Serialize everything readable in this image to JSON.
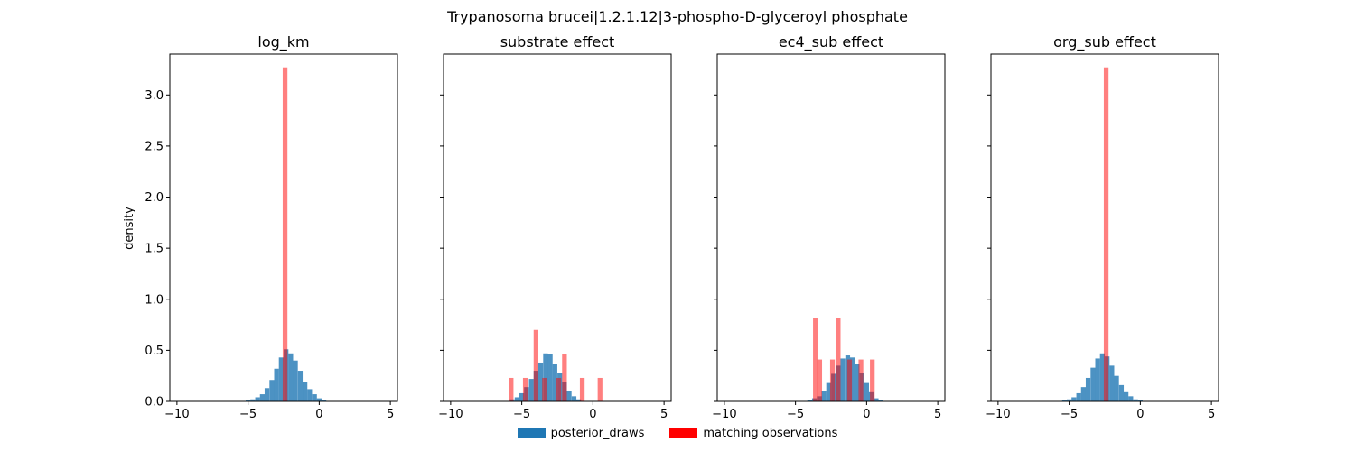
{
  "figure": {
    "suptitle": "Trypanosoma brucei|1.2.1.12|3-phospho-D-glyceroyl phosphate",
    "ylabel": "density"
  },
  "legend": {
    "items": [
      {
        "label": "posterior_draws",
        "color": "#1f77b4"
      },
      {
        "label": "matching observations",
        "color": "#ff0000"
      }
    ]
  },
  "colors": {
    "posterior": "#1f77b4",
    "observations": "#ff0000"
  },
  "chart_data": [
    {
      "type": "bar",
      "title": "log_km",
      "xlim": [
        -10.5,
        5.5
      ],
      "ylim": [
        0,
        3.4
      ],
      "xticks": [
        -10,
        -5,
        0,
        5
      ],
      "yticks": [
        0.0,
        0.5,
        1.0,
        1.5,
        2.0,
        2.5,
        3.0
      ],
      "ytick_labels": [
        "0.0",
        "0.5",
        "1.0",
        "1.5",
        "2.0",
        "2.5",
        "3.0"
      ],
      "series": [
        {
          "name": "posterior_draws",
          "bin_width": 0.333,
          "bins": [
            [
              -5.0,
              0.01
            ],
            [
              -4.67,
              0.02
            ],
            [
              -4.33,
              0.04
            ],
            [
              -4.0,
              0.07
            ],
            [
              -3.67,
              0.13
            ],
            [
              -3.33,
              0.21
            ],
            [
              -3.0,
              0.32
            ],
            [
              -2.67,
              0.43
            ],
            [
              -2.33,
              0.51
            ],
            [
              -2.0,
              0.47
            ],
            [
              -1.67,
              0.4
            ],
            [
              -1.33,
              0.3
            ],
            [
              -1.0,
              0.19
            ],
            [
              -0.67,
              0.12
            ],
            [
              -0.33,
              0.07
            ],
            [
              0.0,
              0.03
            ],
            [
              0.33,
              0.01
            ]
          ]
        },
        {
          "name": "matching observations",
          "bin_width": 0.333,
          "bins": [
            [
              -2.4,
              3.27
            ]
          ]
        }
      ]
    },
    {
      "type": "bar",
      "title": "substrate effect",
      "xlim": [
        -10.5,
        5.5
      ],
      "ylim": [
        0,
        3.4
      ],
      "xticks": [
        -10,
        -5,
        0,
        5
      ],
      "yticks": [
        0.0,
        0.5,
        1.0,
        1.5,
        2.0,
        2.5,
        3.0
      ],
      "series": [
        {
          "name": "posterior_draws",
          "bin_width": 0.333,
          "bins": [
            [
              -5.67,
              0.02
            ],
            [
              -5.33,
              0.04
            ],
            [
              -5.0,
              0.08
            ],
            [
              -4.67,
              0.14
            ],
            [
              -4.33,
              0.22
            ],
            [
              -4.0,
              0.3
            ],
            [
              -3.67,
              0.38
            ],
            [
              -3.33,
              0.47
            ],
            [
              -3.0,
              0.46
            ],
            [
              -2.67,
              0.37
            ],
            [
              -2.33,
              0.28
            ],
            [
              -2.0,
              0.19
            ],
            [
              -1.67,
              0.1
            ],
            [
              -1.33,
              0.05
            ],
            [
              -1.0,
              0.02
            ]
          ]
        },
        {
          "name": "matching observations",
          "bin_width": 0.333,
          "bins": [
            [
              -5.75,
              0.23
            ],
            [
              -4.75,
              0.23
            ],
            [
              -4.0,
              0.7
            ],
            [
              -3.4,
              0.23
            ],
            [
              -2.4,
              0.23
            ],
            [
              -2.0,
              0.46
            ],
            [
              -0.75,
              0.23
            ],
            [
              0.5,
              0.23
            ]
          ]
        }
      ]
    },
    {
      "type": "bar",
      "title": "ec4_sub effect",
      "xlim": [
        -10.5,
        5.5
      ],
      "ylim": [
        0,
        3.4
      ],
      "xticks": [
        -10,
        -5,
        0,
        5
      ],
      "yticks": [
        0.0,
        0.5,
        1.0,
        1.5,
        2.0,
        2.5,
        3.0
      ],
      "series": [
        {
          "name": "posterior_draws",
          "bin_width": 0.333,
          "bins": [
            [
              -4.0,
              0.01
            ],
            [
              -3.67,
              0.03
            ],
            [
              -3.33,
              0.05
            ],
            [
              -3.0,
              0.1
            ],
            [
              -2.67,
              0.18
            ],
            [
              -2.33,
              0.27
            ],
            [
              -2.0,
              0.35
            ],
            [
              -1.67,
              0.42
            ],
            [
              -1.33,
              0.45
            ],
            [
              -1.0,
              0.43
            ],
            [
              -0.67,
              0.37
            ],
            [
              -0.33,
              0.28
            ],
            [
              0.0,
              0.18
            ],
            [
              0.33,
              0.09
            ],
            [
              0.67,
              0.03
            ],
            [
              1.0,
              0.01
            ]
          ]
        },
        {
          "name": "matching observations",
          "bin_width": 0.333,
          "bins": [
            [
              -3.6,
              0.82
            ],
            [
              -3.3,
              0.41
            ],
            [
              -2.4,
              0.41
            ],
            [
              -2.0,
              0.82
            ],
            [
              -1.2,
              0.41
            ],
            [
              -0.4,
              0.41
            ],
            [
              0.4,
              0.41
            ]
          ]
        }
      ]
    },
    {
      "type": "bar",
      "title": "org_sub effect",
      "xlim": [
        -10.5,
        5.5
      ],
      "ylim": [
        0,
        3.4
      ],
      "xticks": [
        -10,
        -5,
        0,
        5
      ],
      "yticks": [
        0.0,
        0.5,
        1.0,
        1.5,
        2.0,
        2.5,
        3.0
      ],
      "series": [
        {
          "name": "posterior_draws",
          "bin_width": 0.333,
          "bins": [
            [
              -5.33,
              0.01
            ],
            [
              -5.0,
              0.02
            ],
            [
              -4.67,
              0.04
            ],
            [
              -4.33,
              0.08
            ],
            [
              -4.0,
              0.14
            ],
            [
              -3.67,
              0.23
            ],
            [
              -3.33,
              0.33
            ],
            [
              -3.0,
              0.42
            ],
            [
              -2.67,
              0.47
            ],
            [
              -2.33,
              0.44
            ],
            [
              -2.0,
              0.35
            ],
            [
              -1.67,
              0.25
            ],
            [
              -1.33,
              0.16
            ],
            [
              -1.0,
              0.09
            ],
            [
              -0.67,
              0.05
            ],
            [
              -0.33,
              0.02
            ],
            [
              0.0,
              0.01
            ]
          ]
        },
        {
          "name": "matching observations",
          "bin_width": 0.333,
          "bins": [
            [
              -2.4,
              3.27
            ]
          ]
        }
      ]
    }
  ]
}
